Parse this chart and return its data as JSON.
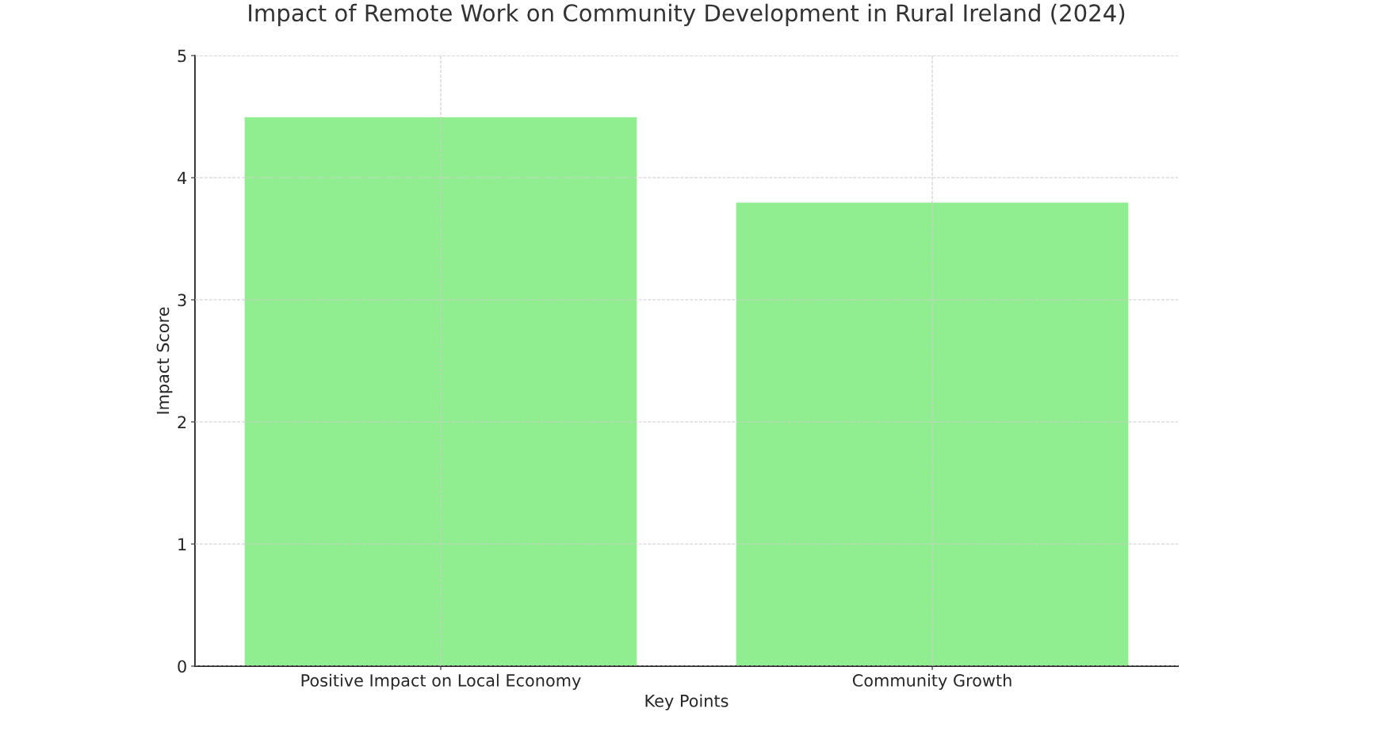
{
  "chart_data": {
    "type": "bar",
    "title": "Impact of Remote Work on Community Development in Rural Ireland (2024)",
    "xlabel": "Key Points",
    "ylabel": "Impact Score",
    "categories": [
      "Positive Impact on Local Economy",
      "Community Growth"
    ],
    "values": [
      4.5,
      3.8
    ],
    "color": "#90ee90",
    "ylim": [
      0,
      5
    ],
    "yticks": [
      0,
      1,
      2,
      3,
      4,
      5
    ],
    "grid": true
  }
}
